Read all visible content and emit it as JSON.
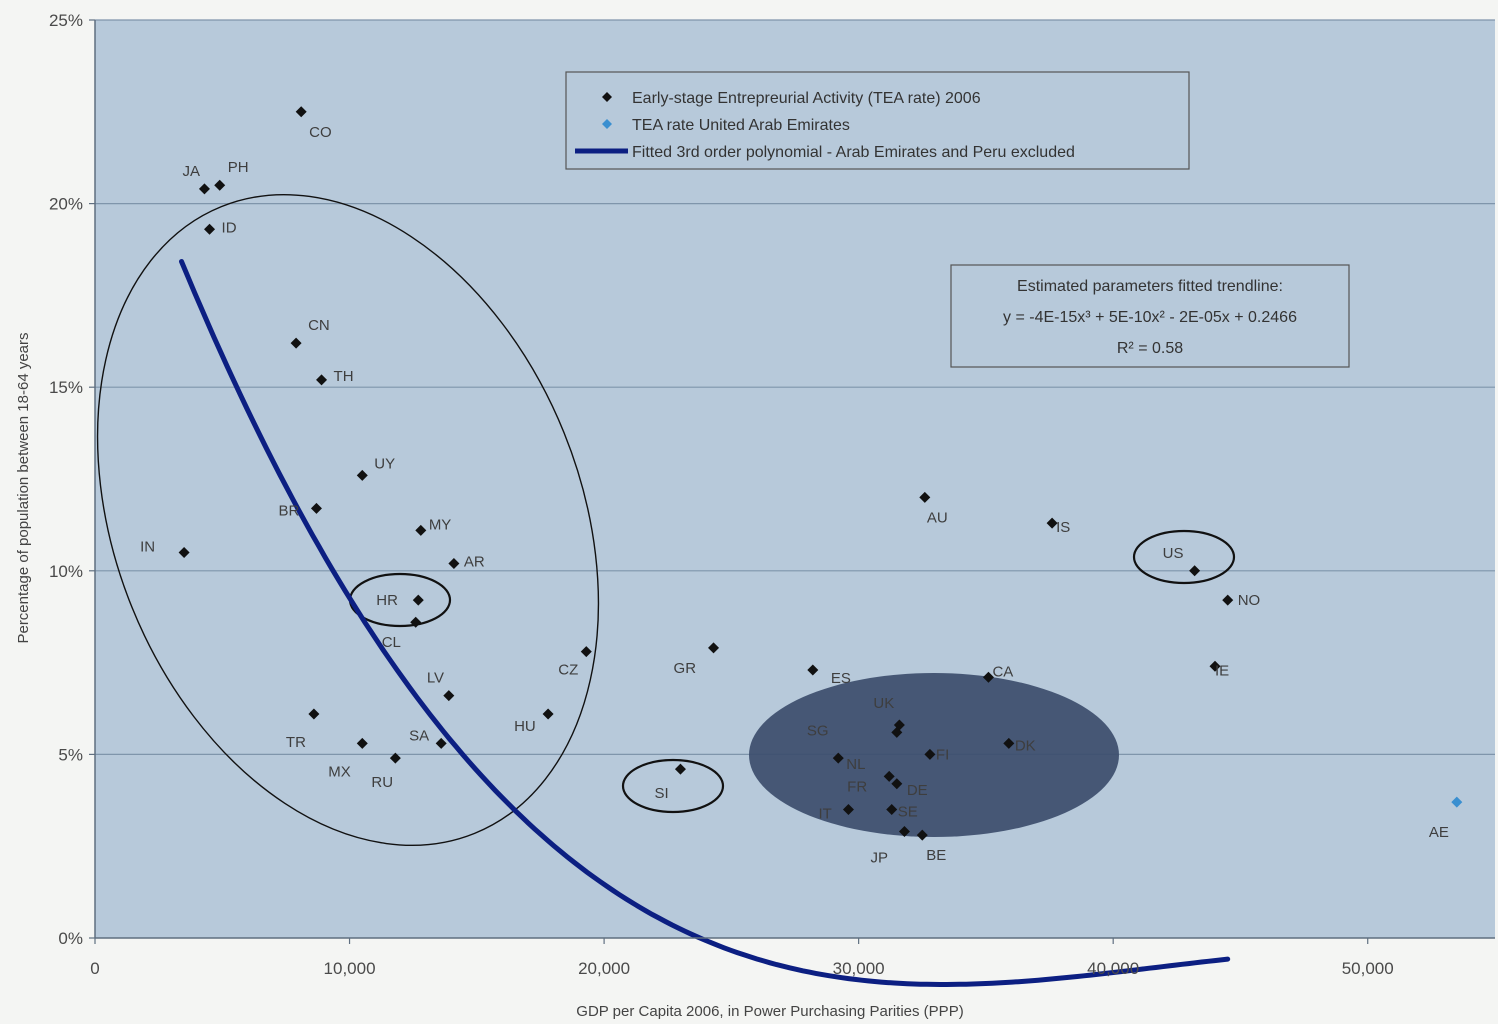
{
  "chart_data": {
    "type": "scatter",
    "xlabel": "GDP per Capita 2006, in Power Purchasing Parities (PPP)",
    "ylabel": "Percentage of population between 18-64 years",
    "xlim": [
      0,
      55000
    ],
    "ylim": [
      0,
      0.25
    ],
    "x_ticks": [
      0,
      10000,
      20000,
      30000,
      40000,
      50000
    ],
    "x_tick_labels": [
      "0",
      "10,000",
      "20,000",
      "30,000",
      "40,000",
      "50,000"
    ],
    "y_ticks": [
      0,
      0.05,
      0.1,
      0.15,
      0.2,
      0.25
    ],
    "y_tick_labels": [
      "0%",
      "5%",
      "10%",
      "15%",
      "20%",
      "25%"
    ],
    "grid": "horizontal",
    "legend_position": "top-center",
    "colors": {
      "plot_bg": "#b7c9da",
      "gridline": "#7f95ab",
      "marker": "#111111",
      "marker_ae": "#3a8fd0",
      "trendline": "#0c1f82",
      "highlight_fill": "#3c4d6c"
    },
    "legend": [
      {
        "label": "Early-stage Entrepreurial Activity (TEA rate) 2006",
        "marker": "diamond",
        "color": "#111111"
      },
      {
        "label": "TEA rate United Arab Emirates",
        "marker": "diamond",
        "color": "#3a8fd0"
      },
      {
        "label": "Fitted 3rd order polynomial - Arab Emirates and Peru excluded",
        "marker": "line",
        "color": "#0c1f82"
      }
    ],
    "parameters_box": {
      "title": "Estimated parameters fitted trendline:",
      "equation": "y = -4E-15x³ + 5E-10x² - 2E-05x + 0.2466",
      "r_squared": "R² = 0.58"
    },
    "series": [
      {
        "name": "Early-stage Entrepreurial Activity (TEA rate) 2006",
        "points": [
          {
            "label": "CO",
            "x": 8100,
            "y": 0.225
          },
          {
            "label": "JA",
            "x": 4300,
            "y": 0.204
          },
          {
            "label": "PH",
            "x": 4900,
            "y": 0.205
          },
          {
            "label": "ID",
            "x": 4500,
            "y": 0.193
          },
          {
            "label": "CN",
            "x": 7900,
            "y": 0.162
          },
          {
            "label": "TH",
            "x": 8900,
            "y": 0.152
          },
          {
            "label": "UY",
            "x": 10500,
            "y": 0.126
          },
          {
            "label": "BR",
            "x": 8700,
            "y": 0.117
          },
          {
            "label": "MY",
            "x": 12800,
            "y": 0.111
          },
          {
            "label": "IN",
            "x": 3500,
            "y": 0.105
          },
          {
            "label": "AR",
            "x": 14100,
            "y": 0.102
          },
          {
            "label": "HR",
            "x": 12700,
            "y": 0.092
          },
          {
            "label": "CL",
            "x": 12600,
            "y": 0.086
          },
          {
            "label": "CZ",
            "x": 19300,
            "y": 0.078
          },
          {
            "label": "LV",
            "x": 13900,
            "y": 0.066
          },
          {
            "label": "TR",
            "x": 8600,
            "y": 0.061
          },
          {
            "label": "HU",
            "x": 17800,
            "y": 0.061
          },
          {
            "label": "SA",
            "x": 13600,
            "y": 0.053
          },
          {
            "label": "MX",
            "x": 10500,
            "y": 0.053
          },
          {
            "label": "RU",
            "x": 11800,
            "y": 0.049
          },
          {
            "label": "GR",
            "x": 24300,
            "y": 0.079
          },
          {
            "label": "SI",
            "x": 23000,
            "y": 0.046
          },
          {
            "label": "ES",
            "x": 28200,
            "y": 0.073
          },
          {
            "label": "AU",
            "x": 32600,
            "y": 0.12
          },
          {
            "label": "IS",
            "x": 37600,
            "y": 0.113
          },
          {
            "label": "US",
            "x": 43200,
            "y": 0.1
          },
          {
            "label": "NO",
            "x": 44500,
            "y": 0.092
          },
          {
            "label": "IE",
            "x": 44000,
            "y": 0.074
          },
          {
            "label": "CA",
            "x": 35100,
            "y": 0.071
          },
          {
            "label": "UK",
            "x": 31600,
            "y": 0.058
          },
          {
            "label": "SG",
            "x": 31500,
            "y": 0.056
          },
          {
            "label": "FI",
            "x": 32800,
            "y": 0.05
          },
          {
            "label": "DK",
            "x": 35900,
            "y": 0.053
          },
          {
            "label": "NL",
            "x": 29200,
            "y": 0.049
          },
          {
            "label": "FR",
            "x": 31200,
            "y": 0.044
          },
          {
            "label": "DE",
            "x": 31500,
            "y": 0.042
          },
          {
            "label": "IT",
            "x": 29600,
            "y": 0.035
          },
          {
            "label": "SE",
            "x": 31300,
            "y": 0.035
          },
          {
            "label": "JP",
            "x": 31800,
            "y": 0.029
          },
          {
            "label": "BE",
            "x": 32500,
            "y": 0.028
          }
        ]
      },
      {
        "name": "TEA rate United Arab Emirates",
        "points": [
          {
            "label": "AE",
            "x": 53500,
            "y": 0.037
          }
        ]
      }
    ],
    "trendline": {
      "name": "Fitted 3rd order polynomial - Arab Emirates and Peru excluded",
      "x_range": [
        3400,
        44500
      ],
      "coefficients": {
        "a3": -4e-15,
        "a2": 5e-10,
        "a1": -2e-05,
        "a0": 0.2466
      }
    }
  }
}
